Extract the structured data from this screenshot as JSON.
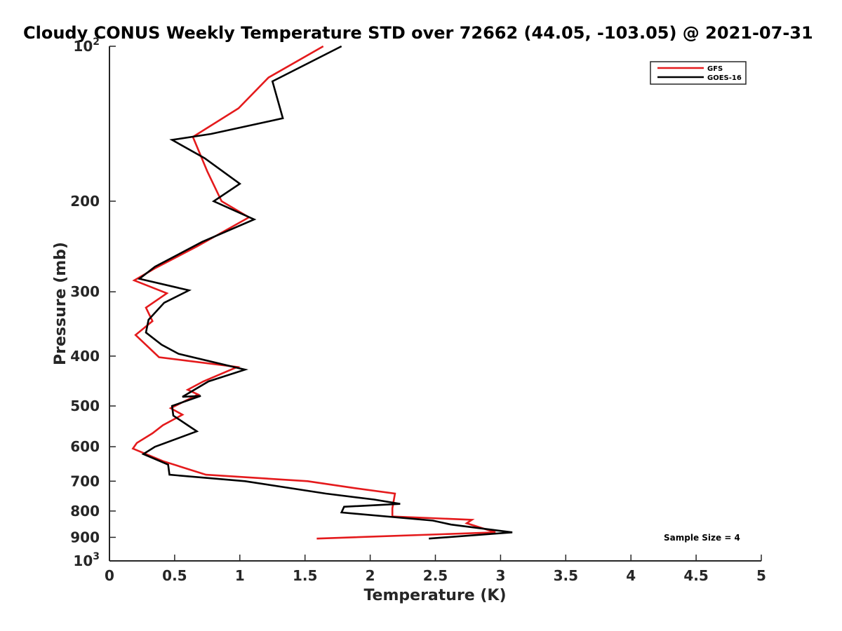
{
  "chart_data": {
    "type": "line",
    "title": "Cloudy CONUS Weekly Temperature STD over 72662 (44.05, -103.05) @ 2021-07-31",
    "xlabel": "Temperature (K)",
    "ylabel": "Pressure (mb)",
    "xlim": [
      0,
      5
    ],
    "ylim": [
      100,
      1000
    ],
    "y_scale": "log",
    "y_reversed": true,
    "grid": false,
    "legend_position": "top-right",
    "x_ticks": [
      "0",
      "0.5",
      "1",
      "1.5",
      "2",
      "2.5",
      "3",
      "3.5",
      "4",
      "4.5",
      "5"
    ],
    "y_ticks": [
      {
        "value": 100,
        "base": "10",
        "exp": "2"
      },
      {
        "value": 200,
        "label": "200"
      },
      {
        "value": 300,
        "label": "300"
      },
      {
        "value": 400,
        "label": "400"
      },
      {
        "value": 500,
        "label": "500"
      },
      {
        "value": 600,
        "label": "600"
      },
      {
        "value": 700,
        "label": "700"
      },
      {
        "value": 800,
        "label": "800"
      },
      {
        "value": 900,
        "label": "900"
      },
      {
        "value": 1000,
        "base": "10",
        "exp": "3"
      }
    ],
    "annotation": "Sample Size = 4",
    "series": [
      {
        "name": "GFS",
        "color": "#e41a1c",
        "points": [
          [
            1.64,
            100
          ],
          [
            1.22,
            115
          ],
          [
            0.99,
            132
          ],
          [
            0.64,
            150
          ],
          [
            0.64,
            150
          ],
          [
            0.75,
            175
          ],
          [
            0.86,
            200
          ],
          [
            1.07,
            215
          ],
          [
            0.67,
            245
          ],
          [
            0.35,
            270
          ],
          [
            0.19,
            285
          ],
          [
            0.44,
            302
          ],
          [
            0.28,
            322
          ],
          [
            0.33,
            342
          ],
          [
            0.2,
            364
          ],
          [
            0.38,
            402
          ],
          [
            0.98,
            420
          ],
          [
            0.72,
            448
          ],
          [
            0.6,
            465
          ],
          [
            0.68,
            475
          ],
          [
            0.47,
            505
          ],
          [
            0.56,
            520
          ],
          [
            0.41,
            545
          ],
          [
            0.33,
            565
          ],
          [
            0.21,
            590
          ],
          [
            0.18,
            605
          ],
          [
            0.41,
            640
          ],
          [
            0.74,
            680
          ],
          [
            1.52,
            700
          ],
          [
            1.88,
            722
          ],
          [
            2.19,
            740
          ],
          [
            2.17,
            790
          ],
          [
            2.17,
            820
          ],
          [
            2.78,
            832
          ],
          [
            2.74,
            845
          ],
          [
            2.96,
            880
          ],
          [
            1.59,
            905
          ]
        ]
      },
      {
        "name": "GOES-16",
        "color": "#000000",
        "points": [
          [
            1.78,
            100
          ],
          [
            1.25,
            117
          ],
          [
            1.33,
            138
          ],
          [
            0.78,
            148
          ],
          [
            0.48,
            152
          ],
          [
            0.73,
            165
          ],
          [
            1.0,
            185
          ],
          [
            0.8,
            200
          ],
          [
            1.11,
            217
          ],
          [
            0.71,
            240
          ],
          [
            0.35,
            268
          ],
          [
            0.23,
            283
          ],
          [
            0.61,
            298
          ],
          [
            0.42,
            315
          ],
          [
            0.3,
            340
          ],
          [
            0.28,
            360
          ],
          [
            0.4,
            380
          ],
          [
            0.53,
            396
          ],
          [
            1.04,
            425
          ],
          [
            0.76,
            448
          ],
          [
            0.56,
            480
          ],
          [
            0.7,
            478
          ],
          [
            0.48,
            500
          ],
          [
            0.49,
            522
          ],
          [
            0.6,
            545
          ],
          [
            0.67,
            560
          ],
          [
            0.35,
            600
          ],
          [
            0.26,
            620
          ],
          [
            0.45,
            650
          ],
          [
            0.46,
            680
          ],
          [
            1.04,
            700
          ],
          [
            1.66,
            740
          ],
          [
            2.03,
            760
          ],
          [
            2.23,
            775
          ],
          [
            1.8,
            785
          ],
          [
            1.78,
            805
          ],
          [
            2.48,
            835
          ],
          [
            2.62,
            850
          ],
          [
            3.09,
            880
          ],
          [
            2.45,
            905
          ]
        ]
      }
    ]
  }
}
